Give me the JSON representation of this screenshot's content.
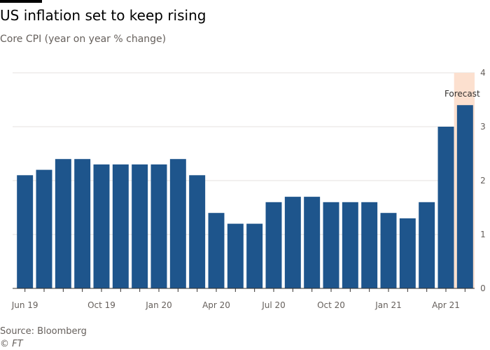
{
  "header": {
    "title": "US inflation set to keep rising",
    "subtitle": "Core CPI (year on year % change)"
  },
  "footer": {
    "source": "Source: Bloomberg",
    "credit": "© FT"
  },
  "chart_data": {
    "type": "bar",
    "title": "US inflation set to keep rising",
    "subtitle": "Core CPI (year on year % change)",
    "categories": [
      "Jun 19",
      "Jul 19",
      "Aug 19",
      "Sep 19",
      "Oct 19",
      "Nov 19",
      "Dec 19",
      "Jan 20",
      "Feb 20",
      "Mar 20",
      "Apr 20",
      "May 20",
      "Jun 20",
      "Jul 20",
      "Aug 20",
      "Sep 20",
      "Oct 20",
      "Nov 20",
      "Dec 20",
      "Jan 21",
      "Feb 21",
      "Mar 21",
      "Apr 21",
      "May 21"
    ],
    "values": [
      2.1,
      2.2,
      2.4,
      2.4,
      2.3,
      2.3,
      2.3,
      2.3,
      2.4,
      2.1,
      1.4,
      1.2,
      1.2,
      1.6,
      1.7,
      1.7,
      1.6,
      1.6,
      1.6,
      1.4,
      1.3,
      1.6,
      3.0,
      3.4
    ],
    "x_tick_labels": [
      {
        "index": 0,
        "label": "Jun 19"
      },
      {
        "index": 4,
        "label": "Oct 19"
      },
      {
        "index": 7,
        "label": "Jan 20"
      },
      {
        "index": 10,
        "label": "Apr 20"
      },
      {
        "index": 13,
        "label": "Jul 20"
      },
      {
        "index": 16,
        "label": "Oct 20"
      },
      {
        "index": 19,
        "label": "Jan 21"
      },
      {
        "index": 22,
        "label": "Apr 21"
      }
    ],
    "y_ticks": [
      0,
      1,
      2,
      3,
      4
    ],
    "ylim": [
      0,
      4
    ],
    "y_axis_side": "right",
    "grid": true,
    "forecast_index": 23,
    "forecast_label": "Forecast",
    "colors": {
      "bar": "#1e558c",
      "forecast_band": "#fce0cf",
      "grid": "#e6e2df",
      "baseline": "#33302e",
      "text": "#66605c"
    }
  }
}
